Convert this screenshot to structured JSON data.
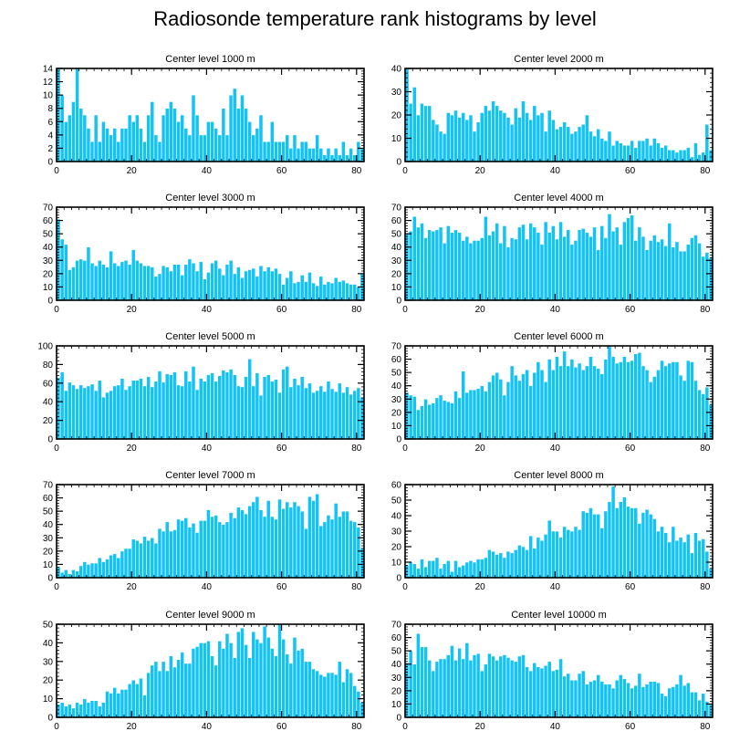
{
  "figure_title": "Radiosonde temperature rank histograms by level",
  "bar_color": "#14c3f5",
  "chart_data": [
    {
      "type": "bar",
      "title": "Center level 1000 m",
      "xlim": [
        0,
        82
      ],
      "xticks": [
        0,
        20,
        40,
        60,
        80
      ],
      "ylim": [
        0,
        14
      ],
      "yticks": [
        0,
        2,
        4,
        6,
        8,
        10,
        12,
        14
      ],
      "values": [
        14,
        10,
        6,
        7,
        9,
        14,
        8,
        7,
        5,
        3,
        7,
        3,
        6,
        5,
        4,
        5,
        3,
        5,
        5,
        7,
        6,
        7,
        5,
        3,
        7,
        9,
        4,
        3,
        7,
        8,
        9,
        8,
        6,
        7,
        5,
        4,
        10,
        7,
        4,
        4,
        6,
        6,
        5,
        4,
        8,
        4,
        10,
        11,
        8,
        10,
        8,
        6,
        4,
        5,
        7,
        3,
        3,
        6,
        3,
        3,
        3,
        4,
        2,
        4,
        2,
        3,
        3,
        2,
        2,
        4,
        2,
        1,
        2,
        1,
        2,
        1,
        3,
        1,
        2,
        1,
        3,
        2
      ]
    },
    {
      "type": "bar",
      "title": "Center level 2000 m",
      "xlim": [
        0,
        82
      ],
      "xticks": [
        0,
        20,
        40,
        60,
        80
      ],
      "ylim": [
        0,
        40
      ],
      "yticks": [
        0,
        10,
        20,
        30,
        40
      ],
      "values": [
        40,
        25,
        32,
        20,
        25,
        24,
        24,
        18,
        16,
        13,
        12,
        21,
        20,
        22,
        19,
        21,
        18,
        20,
        13,
        17,
        21,
        24,
        22,
        26,
        24,
        22,
        21,
        19,
        16,
        23,
        19,
        26,
        21,
        18,
        24,
        20,
        21,
        13,
        22,
        18,
        14,
        15,
        17,
        15,
        12,
        13,
        15,
        16,
        20,
        13,
        11,
        14,
        10,
        9,
        13,
        7,
        9,
        8,
        7,
        7,
        9,
        6,
        9,
        9,
        10,
        7,
        10,
        8,
        6,
        7,
        5,
        5,
        4,
        5,
        5,
        6,
        2,
        8,
        3,
        4,
        16,
        5
      ]
    },
    {
      "type": "bar",
      "title": "Center level 3000 m",
      "xlim": [
        0,
        82
      ],
      "xticks": [
        0,
        20,
        40,
        60,
        80
      ],
      "ylim": [
        0,
        70
      ],
      "yticks": [
        0,
        10,
        20,
        30,
        40,
        50,
        60,
        70
      ],
      "values": [
        61,
        46,
        42,
        23,
        25,
        30,
        31,
        30,
        40,
        28,
        26,
        30,
        27,
        25,
        37,
        28,
        26,
        29,
        30,
        27,
        38,
        30,
        28,
        26,
        26,
        25,
        18,
        20,
        26,
        25,
        22,
        27,
        27,
        19,
        27,
        31,
        28,
        22,
        29,
        16,
        21,
        28,
        30,
        24,
        19,
        27,
        30,
        20,
        25,
        17,
        22,
        23,
        24,
        18,
        26,
        22,
        25,
        22,
        24,
        20,
        12,
        17,
        22,
        13,
        14,
        19,
        14,
        21,
        13,
        11,
        18,
        12,
        14,
        13,
        17,
        14,
        15,
        13,
        12,
        12,
        10,
        20
      ]
    },
    {
      "type": "bar",
      "title": "Center level 4000 m",
      "xlim": [
        0,
        82
      ],
      "xticks": [
        0,
        20,
        40,
        60,
        80
      ],
      "ylim": [
        0,
        70
      ],
      "yticks": [
        0,
        10,
        20,
        30,
        40,
        50,
        60,
        70
      ],
      "values": [
        50,
        52,
        63,
        55,
        58,
        47,
        53,
        52,
        53,
        55,
        43,
        56,
        51,
        53,
        51,
        45,
        48,
        43,
        45,
        45,
        47,
        63,
        49,
        52,
        58,
        43,
        56,
        40,
        47,
        46,
        55,
        57,
        46,
        58,
        55,
        51,
        42,
        59,
        51,
        56,
        46,
        59,
        48,
        53,
        42,
        45,
        53,
        54,
        51,
        48,
        55,
        38,
        56,
        47,
        65,
        52,
        55,
        42,
        59,
        62,
        64,
        45,
        55,
        48,
        38,
        45,
        49,
        44,
        46,
        41,
        58,
        40,
        44,
        37,
        37,
        42,
        47,
        49,
        43,
        33,
        36,
        32
      ]
    },
    {
      "type": "bar",
      "title": "Center level 5000 m",
      "xlim": [
        0,
        82
      ],
      "xticks": [
        0,
        20,
        40,
        60,
        80
      ],
      "ylim": [
        0,
        100
      ],
      "yticks": [
        0,
        20,
        40,
        60,
        80,
        100
      ],
      "values": [
        66,
        72,
        52,
        61,
        58,
        54,
        58,
        55,
        57,
        59,
        52,
        63,
        45,
        50,
        52,
        57,
        58,
        65,
        53,
        57,
        63,
        63,
        65,
        57,
        67,
        56,
        62,
        73,
        61,
        70,
        69,
        72,
        58,
        57,
        73,
        62,
        78,
        53,
        65,
        62,
        69,
        71,
        62,
        68,
        74,
        72,
        75,
        69,
        57,
        56,
        67,
        86,
        57,
        71,
        47,
        67,
        69,
        62,
        64,
        50,
        75,
        78,
        56,
        65,
        58,
        67,
        55,
        60,
        50,
        52,
        57,
        51,
        62,
        54,
        51,
        60,
        50,
        56,
        48,
        52,
        55,
        45
      ]
    },
    {
      "type": "bar",
      "title": "Center level 6000 m",
      "xlim": [
        0,
        82
      ],
      "xticks": [
        0,
        20,
        40,
        60,
        80
      ],
      "ylim": [
        0,
        70
      ],
      "yticks": [
        0,
        10,
        20,
        30,
        40,
        50,
        60,
        70
      ],
      "values": [
        35,
        33,
        32,
        22,
        25,
        30,
        26,
        27,
        31,
        33,
        29,
        28,
        27,
        36,
        31,
        51,
        35,
        37,
        37,
        38,
        40,
        36,
        43,
        48,
        50,
        45,
        33,
        43,
        55,
        48,
        44,
        49,
        52,
        40,
        50,
        58,
        52,
        43,
        60,
        52,
        62,
        55,
        66,
        55,
        60,
        54,
        57,
        52,
        55,
        62,
        55,
        53,
        49,
        60,
        70,
        62,
        57,
        58,
        62,
        58,
        59,
        64,
        65,
        55,
        52,
        43,
        47,
        52,
        59,
        55,
        57,
        58,
        58,
        48,
        44,
        59,
        58,
        44,
        37,
        34,
        39,
        26
      ]
    },
    {
      "type": "bar",
      "title": "Center level 7000 m",
      "xlim": [
        0,
        82
      ],
      "xticks": [
        0,
        20,
        40,
        60,
        80
      ],
      "ylim": [
        0,
        70
      ],
      "yticks": [
        0,
        10,
        20,
        30,
        40,
        50,
        60,
        70
      ],
      "values": [
        8,
        4,
        6,
        3,
        6,
        5,
        9,
        12,
        10,
        11,
        11,
        15,
        12,
        14,
        17,
        18,
        15,
        20,
        22,
        22,
        29,
        28,
        26,
        31,
        28,
        30,
        26,
        37,
        35,
        42,
        35,
        36,
        44,
        43,
        45,
        38,
        41,
        34,
        43,
        43,
        51,
        46,
        47,
        42,
        40,
        42,
        49,
        45,
        53,
        51,
        48,
        54,
        57,
        61,
        51,
        46,
        58,
        46,
        44,
        59,
        52,
        57,
        53,
        57,
        54,
        50,
        37,
        61,
        58,
        63,
        39,
        42,
        47,
        44,
        56,
        46,
        50,
        50,
        43,
        42,
        38,
        22
      ]
    },
    {
      "type": "bar",
      "title": "Center level 8000 m",
      "xlim": [
        0,
        82
      ],
      "xticks": [
        0,
        20,
        40,
        60,
        80
      ],
      "ylim": [
        0,
        60
      ],
      "yticks": [
        0,
        10,
        20,
        30,
        40,
        50,
        60
      ],
      "values": [
        8,
        10,
        9,
        6,
        12,
        7,
        11,
        11,
        13,
        6,
        9,
        11,
        4,
        11,
        7,
        8,
        10,
        11,
        10,
        12,
        12,
        13,
        18,
        17,
        15,
        16,
        13,
        17,
        16,
        18,
        21,
        20,
        18,
        27,
        19,
        26,
        24,
        28,
        37,
        30,
        30,
        26,
        33,
        31,
        30,
        33,
        31,
        43,
        42,
        45,
        41,
        41,
        32,
        43,
        49,
        59,
        45,
        49,
        52,
        46,
        45,
        45,
        35,
        42,
        44,
        41,
        38,
        30,
        33,
        29,
        23,
        33,
        24,
        26,
        23,
        28,
        16,
        29,
        24,
        25,
        17,
        6,
        10
      ]
    },
    {
      "type": "bar",
      "title": "Center level 9000 m",
      "xlim": [
        0,
        82
      ],
      "xticks": [
        0,
        20,
        40,
        60,
        80
      ],
      "ylim": [
        0,
        50
      ],
      "yticks": [
        0,
        10,
        20,
        30,
        40,
        50
      ],
      "values": [
        7,
        8,
        6,
        7,
        5,
        8,
        7,
        10,
        8,
        9,
        9,
        6,
        8,
        14,
        13,
        16,
        13,
        15,
        15,
        18,
        20,
        18,
        21,
        12,
        24,
        28,
        30,
        25,
        30,
        25,
        33,
        27,
        31,
        35,
        29,
        29,
        37,
        38,
        40,
        40,
        41,
        33,
        28,
        41,
        37,
        45,
        40,
        32,
        46,
        48,
        39,
        32,
        46,
        42,
        40,
        49,
        43,
        37,
        33,
        50,
        42,
        34,
        29,
        43,
        36,
        37,
        30,
        30,
        26,
        25,
        23,
        22,
        24,
        24,
        23,
        30,
        19,
        26,
        24,
        17,
        14,
        8
      ]
    },
    {
      "type": "bar",
      "title": "Center level 10000 m",
      "xlim": [
        0,
        82
      ],
      "xticks": [
        0,
        20,
        40,
        60,
        80
      ],
      "ylim": [
        0,
        70
      ],
      "yticks": [
        0,
        10,
        20,
        30,
        40,
        50,
        60,
        70
      ],
      "values": [
        41,
        50,
        40,
        63,
        53,
        53,
        43,
        35,
        42,
        44,
        44,
        47,
        54,
        43,
        52,
        44,
        56,
        43,
        47,
        48,
        35,
        40,
        48,
        46,
        43,
        46,
        47,
        45,
        43,
        42,
        46,
        47,
        38,
        35,
        41,
        38,
        37,
        39,
        42,
        35,
        36,
        44,
        31,
        33,
        28,
        28,
        33,
        35,
        25,
        27,
        28,
        32,
        27,
        25,
        25,
        22,
        28,
        32,
        29,
        26,
        22,
        24,
        33,
        23,
        25,
        27,
        27,
        26,
        18,
        16,
        22,
        23,
        25,
        32,
        24,
        26,
        19,
        19,
        13,
        18,
        12,
        10,
        8,
        10
      ]
    }
  ]
}
